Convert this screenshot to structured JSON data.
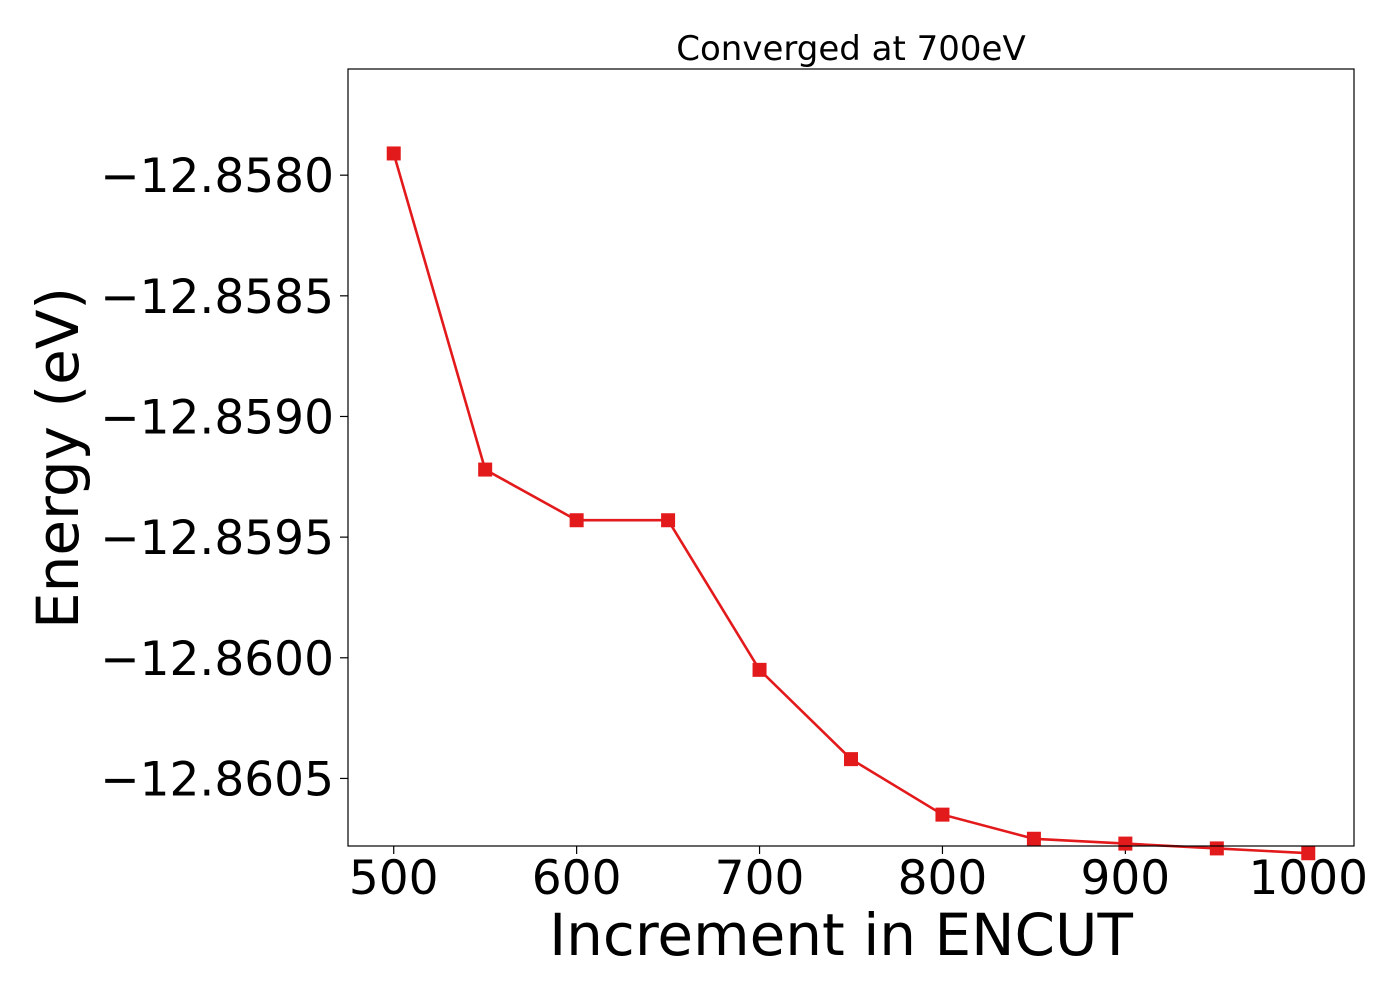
{
  "chart_data": {
    "type": "line",
    "title": "Converged at 700eV",
    "xlabel": "Increment in ENCUT",
    "ylabel": "Energy (eV)",
    "xlim": [
      475,
      1025
    ],
    "ylim": [
      -12.86078,
      -12.85756
    ],
    "xticks": [
      500,
      600,
      700,
      800,
      900,
      1000
    ],
    "xtick_labels": [
      "500",
      "600",
      "700",
      "800",
      "900",
      "1000"
    ],
    "yticks": [
      -12.858,
      -12.8585,
      -12.859,
      -12.8595,
      -12.86,
      -12.8605
    ],
    "ytick_labels": [
      "−12.8580",
      "−12.8585",
      "−12.8590",
      "−12.8595",
      "−12.8600",
      "−12.8605"
    ],
    "grid": false,
    "series": [
      {
        "color": "#e31a1c",
        "marker": "square",
        "x": [
          500,
          550,
          600,
          650,
          700,
          750,
          800,
          850,
          900,
          950,
          1000
        ],
        "y": [
          -12.85791,
          -12.85922,
          -12.85943,
          -12.85943,
          -12.86005,
          -12.86042,
          -12.86065,
          -12.86075,
          -12.86077,
          -12.86079,
          -12.86081
        ]
      }
    ]
  }
}
